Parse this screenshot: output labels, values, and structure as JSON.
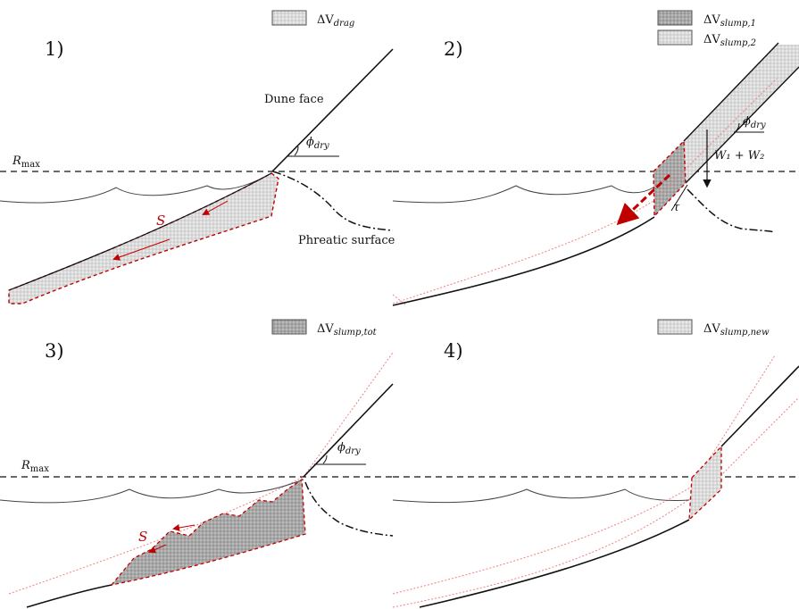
{
  "panels": {
    "p1": {
      "number": "1)",
      "legend": [
        {
          "symbol": "ΔV",
          "sub": "drag"
        }
      ],
      "labels": {
        "dune_face": "Dune face",
        "phreatic": "Phreatic surface",
        "rmax": "R",
        "rmax_sub": "max",
        "phi": "ϕ",
        "phi_sub": "dry",
        "s": "S"
      }
    },
    "p2": {
      "number": "2)",
      "legend": [
        {
          "symbol": "ΔV",
          "sub": "slump,1"
        },
        {
          "symbol": "ΔV",
          "sub": "slump,2"
        }
      ],
      "labels": {
        "phi": "ϕ",
        "phi_sub": "dry",
        "weight": "W₁ + W₂",
        "tau": "τ"
      }
    },
    "p3": {
      "number": "3)",
      "legend": [
        {
          "symbol": "ΔV",
          "sub": "slump,tot"
        }
      ],
      "labels": {
        "rmax": "R",
        "rmax_sub": "max",
        "phi": "ϕ",
        "phi_sub": "dry",
        "s": "S"
      }
    },
    "p4": {
      "number": "4)",
      "legend": [
        {
          "symbol": "ΔV",
          "sub": "slump,new"
        }
      ]
    }
  },
  "colors": {
    "line": "#111111",
    "red": "#c00000",
    "pink": "#f08080",
    "fill_light": "#dcdcdc",
    "fill_dark": "#a9a9a9"
  }
}
